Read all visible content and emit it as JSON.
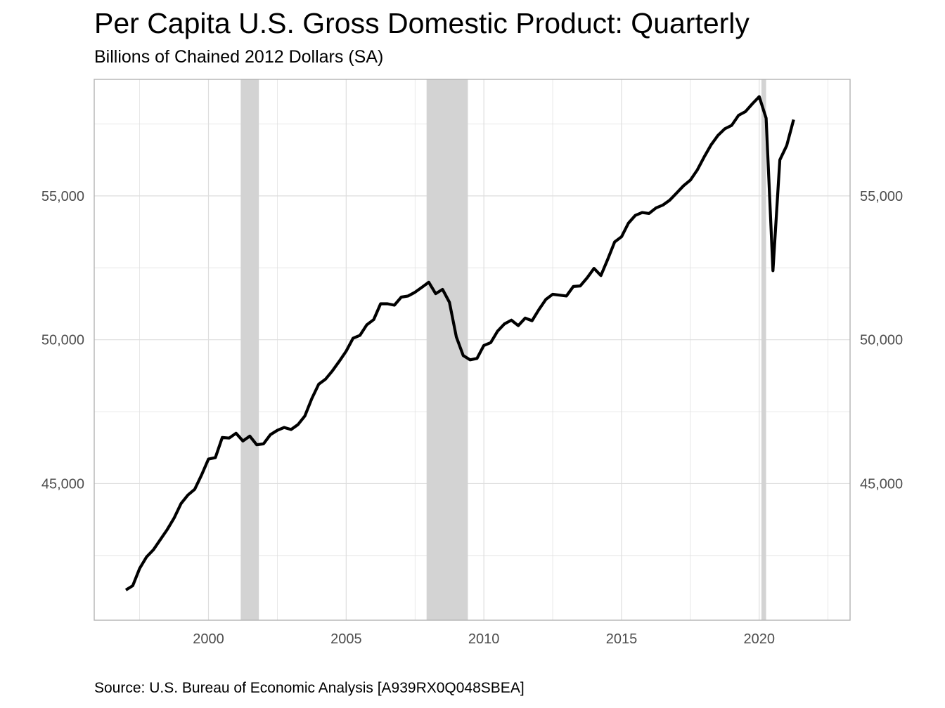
{
  "chart_data": {
    "type": "line",
    "title": "Per Capita U.S. Gross Domestic Product: Quarterly",
    "subtitle": "Billions of Chained 2012 Dollars (SA)",
    "caption": "Source: U.S. Bureau of Economic Analysis [A939RX0Q048SBEA]",
    "xlabel": "",
    "ylabel": "",
    "xlim": [
      1995.85,
      2023.3
    ],
    "ylim": [
      40250,
      59050
    ],
    "x_ticks": [
      2000,
      2005,
      2010,
      2015,
      2020
    ],
    "x_tick_labels": [
      "2000",
      "2005",
      "2010",
      "2015",
      "2020"
    ],
    "x_minor_ticks": [
      1997.5,
      2002.5,
      2007.5,
      2012.5,
      2017.5,
      2022.5
    ],
    "y_ticks": [
      45000,
      50000,
      55000
    ],
    "y_tick_labels": [
      "45,000",
      "50,000",
      "55,000"
    ],
    "y_minor_ticks": [
      42500,
      47500,
      52500,
      57500
    ],
    "secondary_y_axis": true,
    "grid": true,
    "legend": "none",
    "colors": {
      "line": "#000000",
      "recession": "#d3d3d3",
      "grid": "#dedede",
      "border": "#b3b3b3",
      "tick_text": "#4d4d4d"
    },
    "recessions": [
      {
        "start": 2001.17,
        "end": 2001.83
      },
      {
        "start": 2007.92,
        "end": 2009.42
      },
      {
        "start": 2020.08,
        "end": 2020.25
      }
    ],
    "x": [
      1997.0,
      1997.25,
      1997.5,
      1997.75,
      1998.0,
      1998.25,
      1998.5,
      1998.75,
      1999.0,
      1999.25,
      1999.5,
      1999.75,
      2000.0,
      2000.25,
      2000.5,
      2000.75,
      2001.0,
      2001.25,
      2001.5,
      2001.75,
      2002.0,
      2002.25,
      2002.5,
      2002.75,
      2003.0,
      2003.25,
      2003.5,
      2003.75,
      2004.0,
      2004.25,
      2004.5,
      2004.75,
      2005.0,
      2005.25,
      2005.5,
      2005.75,
      2006.0,
      2006.25,
      2006.5,
      2006.75,
      2007.0,
      2007.25,
      2007.5,
      2007.75,
      2008.0,
      2008.25,
      2008.5,
      2008.75,
      2009.0,
      2009.25,
      2009.5,
      2009.75,
      2010.0,
      2010.25,
      2010.5,
      2010.75,
      2011.0,
      2011.25,
      2011.5,
      2011.75,
      2012.0,
      2012.25,
      2012.5,
      2012.75,
      2013.0,
      2013.25,
      2013.5,
      2013.75,
      2014.0,
      2014.25,
      2014.5,
      2014.75,
      2015.0,
      2015.25,
      2015.5,
      2015.75,
      2016.0,
      2016.25,
      2016.5,
      2016.75,
      2017.0,
      2017.25,
      2017.5,
      2017.75,
      2018.0,
      2018.25,
      2018.5,
      2018.75,
      2019.0,
      2019.25,
      2019.5,
      2019.75,
      2020.0,
      2020.25,
      2020.5,
      2020.75,
      2021.0,
      2021.25
    ],
    "series": [
      {
        "values": [
          41300,
          41450,
          42050,
          42450,
          42700,
          43050,
          43400,
          43800,
          44300,
          44600,
          44800,
          45300,
          45850,
          45900,
          46600,
          46580,
          46750,
          46480,
          46650,
          46350,
          46380,
          46700,
          46850,
          46950,
          46880,
          47050,
          47350,
          47950,
          48450,
          48630,
          48920,
          49250,
          49600,
          50050,
          50150,
          50520,
          50700,
          51250,
          51250,
          51200,
          51480,
          51520,
          51650,
          51820,
          52000,
          51600,
          51750,
          51300,
          50100,
          49450,
          49300,
          49350,
          49800,
          49900,
          50300,
          50550,
          50680,
          50490,
          50750,
          50660,
          51050,
          51400,
          51580,
          51550,
          51520,
          51850,
          51870,
          52150,
          52480,
          52230,
          52800,
          53400,
          53580,
          54050,
          54320,
          54420,
          54390,
          54580,
          54680,
          54850,
          55100,
          55350,
          55550,
          55900,
          56350,
          56770,
          57100,
          57330,
          57450,
          57800,
          57930,
          58200,
          58450,
          57700,
          52400,
          56250,
          56750,
          57650
        ]
      }
    ]
  }
}
